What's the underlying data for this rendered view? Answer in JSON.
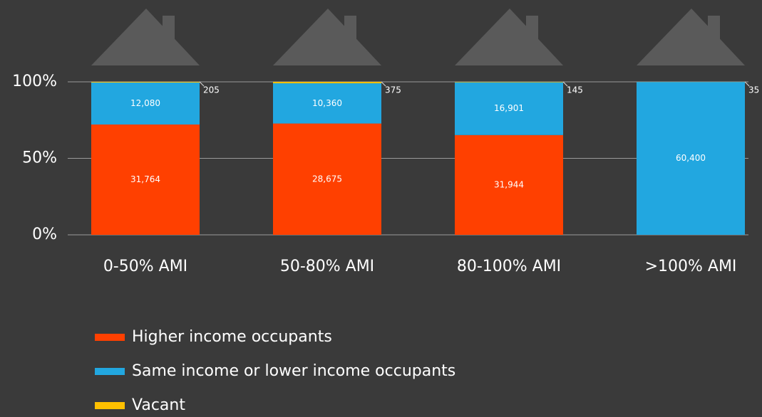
{
  "chart_data": {
    "type": "stacked_percent_bar",
    "categories": [
      "0-50% AMI",
      "50-80% AMI",
      "80-100% AMI",
      ">100% AMI"
    ],
    "series": [
      {
        "name": "Higher income occupants",
        "color": "#ff4000",
        "values": [
          31764,
          28675,
          31944,
          0
        ],
        "value_labels": [
          "31,764",
          "28,675",
          "31,944",
          null
        ]
      },
      {
        "name": "Same income or lower income occupants",
        "color": "#22a7e0",
        "values": [
          12080,
          10360,
          16901,
          60400
        ],
        "value_labels": [
          "12,080",
          "10,360",
          "16,901",
          "60,400"
        ]
      },
      {
        "name": "Vacant",
        "color": "#ffc000",
        "values": [
          205,
          375,
          145,
          35
        ]
      }
    ],
    "ylim": [
      0,
      100
    ],
    "yticks": [
      {
        "value": 0,
        "label": "0%"
      },
      {
        "value": 50,
        "label": "50%"
      },
      {
        "value": 100,
        "label": "100%"
      }
    ],
    "grid": true,
    "legend": "bottom"
  }
}
